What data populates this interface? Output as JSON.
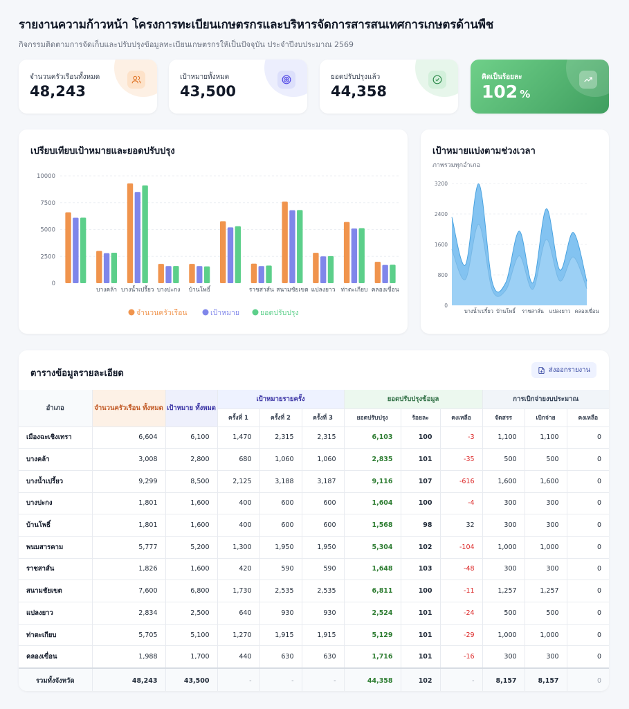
{
  "header": {
    "title": "รายงานความก้าวหน้า โครงการทะเบียนเกษตรกรและบริหารจัดการสารสนเทศการเกษตรด้านพืช",
    "subtitle": "กิจกรรมติดตามการจัดเก็บและปรับปรุงข้อมูลทะเบียนเกษตรกรให้เป็นปัจจุบัน ประจำปีงบประมาณ 2569"
  },
  "stats": [
    {
      "label": "จำนวนครัวเรือนทั้งหมด",
      "value": "48,243",
      "icon": "users-icon",
      "color": "#f0883e"
    },
    {
      "label": "เป้าหมายทั้งหมด",
      "value": "43,500",
      "icon": "target-icon",
      "color": "#5b5fd6"
    },
    {
      "label": "ยอดปรับปรุงแล้ว",
      "value": "44,358",
      "icon": "check-circle-icon",
      "color": "#3f9e5f"
    },
    {
      "label": "คิดเป็นร้อยละ",
      "value": "102",
      "unit": "%",
      "icon": "trend-up-icon",
      "color": "#ffffff"
    }
  ],
  "bar_chart_title": "เปรียบเทียบเป้าหมายและยอดปรับปรุง",
  "area_chart": {
    "title": "เป้าหมายแบ่งตามช่วงเวลา",
    "subtitle": "ภาพรวมทุกอำเภอ"
  },
  "chart_data": [
    {
      "type": "bar",
      "title": "เปรียบเทียบเป้าหมายและยอดปรับปรุง",
      "categories": [
        "",
        "บางคล้า",
        "บางน้ำเปรี้ยว",
        "บางปะกง",
        "บ้านโพธิ์",
        "",
        "ราชสาส์น",
        "สนามชัยเขต",
        "แปลงยาว",
        "ท่าตะเกียบ",
        "คลองเขื่อน"
      ],
      "series": [
        {
          "name": "จำนวนครัวเรือน",
          "color": "#f0944d",
          "values": [
            6604,
            3008,
            9299,
            1801,
            1801,
            5777,
            1826,
            7600,
            2834,
            5705,
            1988
          ]
        },
        {
          "name": "เป้าหมาย",
          "color": "#7f86ea",
          "values": [
            6100,
            2800,
            8500,
            1600,
            1600,
            5200,
            1600,
            6800,
            2500,
            5100,
            1700
          ]
        },
        {
          "name": "ยอดปรับปรุง",
          "color": "#5ccf8a",
          "values": [
            6103,
            2835,
            9116,
            1604,
            1568,
            5304,
            1648,
            6811,
            2524,
            5129,
            1716
          ]
        }
      ],
      "yticks": [
        "0",
        "2500",
        "5000",
        "7500",
        "10000"
      ],
      "ylim": [
        0,
        10000
      ],
      "legend": "bottom",
      "grid": true
    },
    {
      "type": "area",
      "title": "เป้าหมายแบ่งตามช่วงเวลา",
      "subtitle": "ภาพรวมทุกอำเภอ",
      "categories": [
        "เมืองฉะเชิงเทรา",
        "บางคล้า",
        "บางน้ำเปรี้ยว",
        "บางปะกง",
        "บ้านโพธิ์",
        "พนมสารคาม",
        "ราชสาส์น",
        "สนามชัยเขต",
        "แปลงยาว",
        "ท่าตะเกียบ",
        "คลองเขื่อน"
      ],
      "xtick_labels": [
        "บางน้ำเปรี้ยว",
        "บ้านโพธิ์",
        "ราชสาส์น",
        "แปลงยาว",
        "คลองเขื่อน"
      ],
      "series": [
        {
          "name": "ครั้งที่ 1",
          "values": [
            1470,
            680,
            2125,
            400,
            400,
            1300,
            420,
            1730,
            640,
            1270,
            440
          ]
        },
        {
          "name": "ครั้งที่ 2",
          "values": [
            2315,
            1060,
            3188,
            600,
            600,
            1950,
            590,
            2535,
            930,
            1915,
            630
          ]
        }
      ],
      "yticks": [
        "0",
        "800",
        "1600",
        "2400",
        "3200"
      ],
      "ylim": [
        0,
        3200
      ],
      "grid": true
    }
  ],
  "table": {
    "title": "ตารางข้อมูลรายละเอียด",
    "export_label": "ส่งออกรายงาน",
    "headers": {
      "amphoe": "อำเภอ",
      "households": "จำนวนครัวเรือน ทั้งหมด",
      "target": "เป้าหมาย ทั้งหมด",
      "round_group": "เป้าหมายรายครั้ง",
      "rounds": [
        "ครั้งที่ 1",
        "ครั้งที่ 2",
        "ครั้งที่ 3"
      ],
      "update_group": "ยอดปรับปรุงข้อมูล",
      "update_cols": [
        "ยอดปรับปรุง",
        "ร้อยละ",
        "คงเหลือ"
      ],
      "budget_group": "การเบิกจ่ายงบประมาณ",
      "budget_cols": [
        "จัดสรร",
        "เบิกจ่าย",
        "คงเหลือ"
      ]
    },
    "rows": [
      [
        "เมืองฉะเชิงเทรา",
        "6,604",
        "6,100",
        "1,470",
        "2,315",
        "2,315",
        "6,103",
        "100",
        "-3",
        "1,100",
        "1,100",
        "0"
      ],
      [
        "บางคล้า",
        "3,008",
        "2,800",
        "680",
        "1,060",
        "1,060",
        "2,835",
        "101",
        "-35",
        "500",
        "500",
        "0"
      ],
      [
        "บางน้ำเปรี้ยว",
        "9,299",
        "8,500",
        "2,125",
        "3,188",
        "3,187",
        "9,116",
        "107",
        "-616",
        "1,600",
        "1,600",
        "0"
      ],
      [
        "บางปะกง",
        "1,801",
        "1,600",
        "400",
        "600",
        "600",
        "1,604",
        "100",
        "-4",
        "300",
        "300",
        "0"
      ],
      [
        "บ้านโพธิ์",
        "1,801",
        "1,600",
        "400",
        "600",
        "600",
        "1,568",
        "98",
        "32",
        "300",
        "300",
        "0"
      ],
      [
        "พนมสารคาม",
        "5,777",
        "5,200",
        "1,300",
        "1,950",
        "1,950",
        "5,304",
        "102",
        "-104",
        "1,000",
        "1,000",
        "0"
      ],
      [
        "ราชสาส์น",
        "1,826",
        "1,600",
        "420",
        "590",
        "590",
        "1,648",
        "103",
        "-48",
        "300",
        "300",
        "0"
      ],
      [
        "สนามชัยเขต",
        "7,600",
        "6,800",
        "1,730",
        "2,535",
        "2,535",
        "6,811",
        "100",
        "-11",
        "1,257",
        "1,257",
        "0"
      ],
      [
        "แปลงยาว",
        "2,834",
        "2,500",
        "640",
        "930",
        "930",
        "2,524",
        "101",
        "-24",
        "500",
        "500",
        "0"
      ],
      [
        "ท่าตะเกียบ",
        "5,705",
        "5,100",
        "1,270",
        "1,915",
        "1,915",
        "5,129",
        "101",
        "-29",
        "1,000",
        "1,000",
        "0"
      ],
      [
        "คลองเขื่อน",
        "1,988",
        "1,700",
        "440",
        "630",
        "630",
        "1,716",
        "101",
        "-16",
        "300",
        "300",
        "0"
      ]
    ],
    "total": [
      "รวมทั้งจังหวัด",
      "48,243",
      "43,500",
      "-",
      "-",
      "-",
      "44,358",
      "102",
      "-",
      "8,157",
      "8,157",
      "0"
    ]
  }
}
